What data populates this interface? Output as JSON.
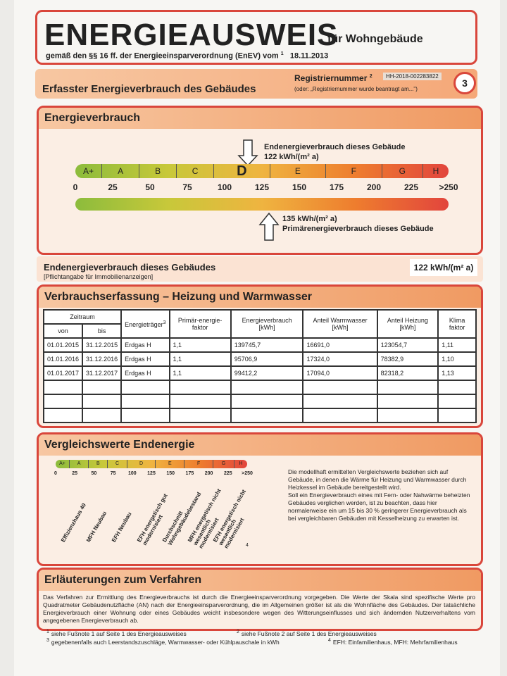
{
  "header": {
    "title": "ENERGIEAUSWEIS",
    "subtitle": "für Wohngebäude",
    "basis": "gemäß den §§ 16 ff. der Energieeinsparverordnung (EnEV) vom",
    "footnote": "1",
    "date": "18.11.2013"
  },
  "section": {
    "title": "Erfasster Energieverbrauch des Gebäudes",
    "reg_label": "Registriernummer",
    "reg_footnote": "2",
    "reg_number": "HH-2018-002283822",
    "reg_note": "(oder: „Registriernummer wurde beantragt am...\")",
    "page": "3"
  },
  "energieverbrauch": {
    "title": "Energieverbrauch",
    "classes": [
      "A+",
      "A",
      "B",
      "C",
      "D",
      "E",
      "F",
      "G",
      "H"
    ],
    "ticks": [
      "0",
      "25",
      "50",
      "75",
      "100",
      "125",
      "150",
      "175",
      "200",
      "225",
      ">250"
    ],
    "end_label": "Endenergieverbrauch dieses Gebäude",
    "end_value": "122 kWh/(m² a)",
    "primary_value": "135 kWh/(m² a)",
    "primary_label": "Primärenergieverbrauch dieses Gebäude"
  },
  "summary": {
    "label": "Endenergieverbrauch dieses Gebäudes",
    "note": "[Pflichtangabe für Immobilienanzeigen]",
    "value": "122 kWh/(m² a)"
  },
  "table": {
    "title": "Verbrauchserfassung – Heizung und Warmwasser",
    "zeitraum": "Zeitraum",
    "von": "von",
    "bis": "bis",
    "energietraeger": "Energieträger",
    "energietraeger_fn": "3",
    "primaer": "Primär-energie-faktor",
    "verbrauch": "Energieverbrauch [kWh]",
    "warmwasser": "Anteil Warmwasser [kWh]",
    "heizung": "Anteil Heizung [kWh]",
    "klima": "Klima faktor",
    "rows": [
      [
        "01.01.2015",
        "31.12.2015",
        "Erdgas H",
        "1,1",
        "139745,7",
        "16691,0",
        "123054,7",
        "1,11"
      ],
      [
        "01.01.2016",
        "31.12.2016",
        "Erdgas H",
        "1,1",
        "95706,9",
        "17324,0",
        "78382,9",
        "1,10"
      ],
      [
        "01.01.2017",
        "31.12.2017",
        "Erdgas H",
        "1,1",
        "99412,2",
        "17094,0",
        "82318,2",
        "1,13"
      ]
    ]
  },
  "vergleich": {
    "title": "Vergleichswerte Endenergie",
    "labels": [
      "Effizienzhaus 40",
      "MFH Neubau",
      "EFH Neubau",
      "EFH energetisch gut modernisiert",
      "Durchschnitt Wohngebäudebestand",
      "MFH energetisch nicht wesentlich modernisiert",
      "EFH energetisch nicht wesentlich modernisiert"
    ],
    "footnote": "4",
    "text1": "Die modellhaft ermittelten Vergleichswerte beziehen sich auf Gebäude, in denen die Wärme für Heizung und Warmwasser durch Heizkessel im Gebäude bereitgestellt wird.",
    "text2": "Soll ein Energieverbrauch eines mit Fern- oder Nahwärme beheizten Gebäudes verglichen werden, ist zu beachten, dass hier normalerweise ein um 15 bis 30 % geringerer Energieverbrauch als bei vergleichbaren Gebäuden mit Kesselheizung zu erwarten ist."
  },
  "erlaeuterungen": {
    "title": "Erläuterungen zum Verfahren",
    "text": "Das Verfahren zur Ermittlung des Energieverbrauchs ist durch die Energieeinsparverordnung vorgegeben. Die Werte der Skala sind spezifische Werte pro Quadratmeter Gebäudenutzfläche (AN) nach der Energieeinsparverordnung, die im Allgemeinen größer ist als die Wohnfläche des Gebäudes. Der tatsächliche Energieverbrauch einer Wohnung oder eines Gebäudes weicht insbesondere wegen des Witterungseinflusses und sich ändernden Nutzerverhaltens vom angegebenen Energieverbrauch ab."
  },
  "footnotes": [
    "siehe Fußnote 1 auf Seite 1 des Energieausweises",
    "siehe Fußnote 2 auf Seite 1 des Energieausweises",
    "gegebenenfalls auch Leerstandszuschläge, Warmwasser- oder Kühlpauschale in kWh",
    "EFH: Einfamilienhaus, MFH: Mehrfamilienhaus"
  ],
  "footnote_marks": [
    "1",
    "2",
    "3",
    "4"
  ]
}
